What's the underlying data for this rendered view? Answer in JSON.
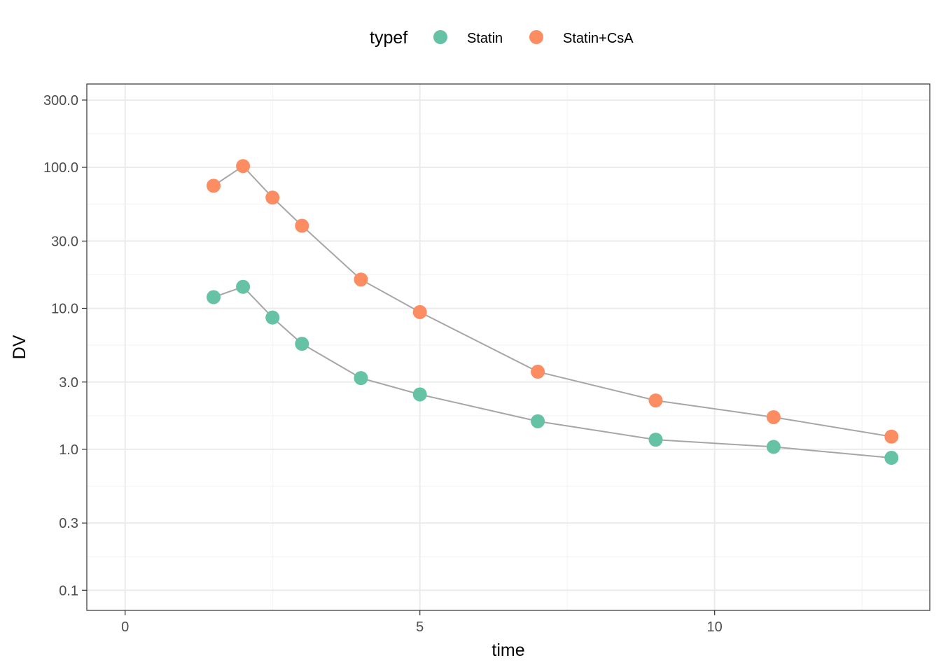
{
  "chart_data": {
    "type": "line",
    "xlabel": "time",
    "ylabel": "DV",
    "xlim": [
      -0.65,
      13.65
    ],
    "ylim": [
      0.072,
      390
    ],
    "y_scale": "log10",
    "x_ticks": [
      0,
      5,
      10
    ],
    "x_tick_labels": [
      "0",
      "5",
      "10"
    ],
    "x_minor_ticks": [
      2.5,
      7.5,
      12.5
    ],
    "y_ticks": [
      0.1,
      0.3,
      1,
      3,
      10,
      30,
      100,
      300
    ],
    "y_tick_labels": [
      "0.1",
      "0.3",
      "1.0",
      "3.0",
      "10.0",
      "30.0",
      "100.0",
      "300.0"
    ],
    "y_minor_ticks": [
      0.1732,
      0.5477,
      1.732,
      5.477,
      17.32,
      54.77,
      173.2
    ],
    "grid": true,
    "legend": {
      "title": "typef",
      "position": "top",
      "entries": [
        "Statin",
        "Statin+CsA"
      ]
    },
    "line_color": "#a6a6a6",
    "series": [
      {
        "name": "Statin",
        "color": "#66c2a5",
        "x": [
          1.5,
          2,
          2.5,
          3,
          4,
          5,
          7,
          9,
          11,
          13
        ],
        "y": [
          12,
          14.2,
          8.6,
          5.6,
          3.2,
          2.45,
          1.58,
          1.17,
          1.04,
          0.87
        ]
      },
      {
        "name": "Statin+CsA",
        "color": "#fc8d62",
        "x": [
          1.5,
          2,
          2.5,
          3,
          4,
          5,
          7,
          9,
          11,
          13
        ],
        "y": [
          74,
          102,
          61,
          38.5,
          16,
          9.4,
          3.55,
          2.22,
          1.69,
          1.23
        ]
      }
    ]
  }
}
